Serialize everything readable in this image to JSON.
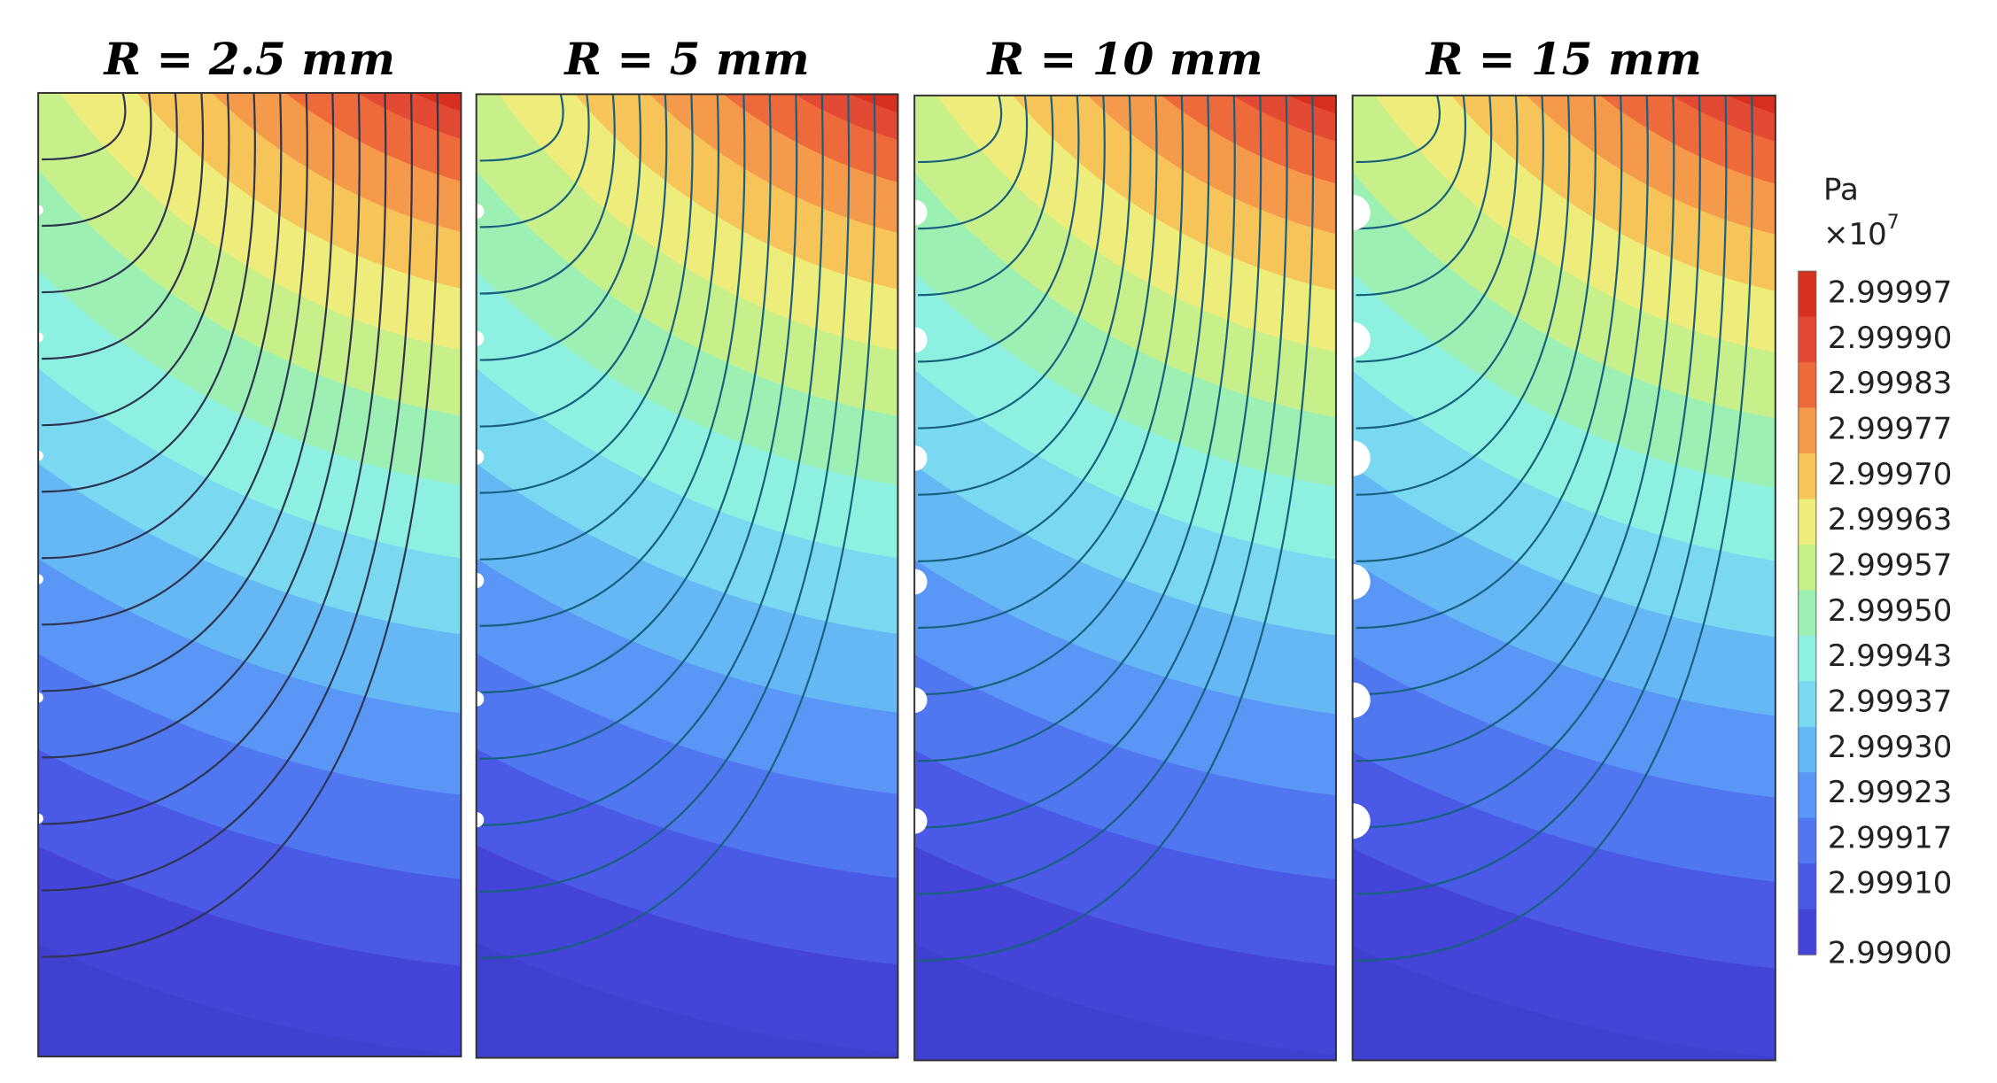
{
  "panels": [
    {
      "title": "R = 2.5 mm"
    },
    {
      "title": "R = 5 mm"
    },
    {
      "title": "R = 10 mm"
    },
    {
      "title": "R = 15 mm"
    }
  ],
  "colorbar": {
    "unit": "Pa",
    "multiplier": "×10",
    "exponent": "7",
    "labels": [
      "2.99997",
      "2.99990",
      "2.99983",
      "2.99977",
      "2.99970",
      "2.99963",
      "2.99957",
      "2.99950",
      "2.99943",
      "2.99937",
      "2.99930",
      "2.99923",
      "2.99917",
      "2.99910",
      "2.99900"
    ]
  }
}
